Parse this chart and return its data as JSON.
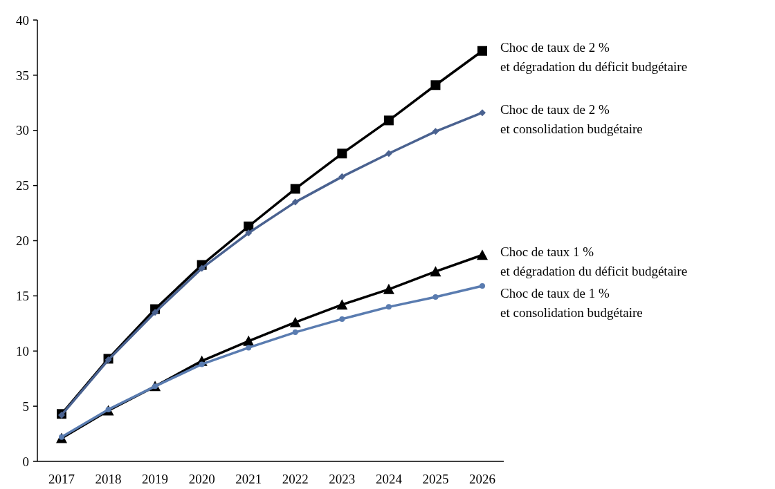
{
  "chart_data": {
    "type": "line",
    "categories": [
      "2017",
      "2018",
      "2019",
      "2020",
      "2021",
      "2022",
      "2023",
      "2024",
      "2025",
      "2026"
    ],
    "ylim": [
      0,
      40
    ],
    "yticks": [
      0,
      5,
      10,
      15,
      20,
      25,
      30,
      35,
      40
    ],
    "grid": false,
    "legend": "right",
    "series": [
      {
        "name": "Choc de taux de 2 %\net dégradation du déficit budgétaire",
        "color": "#000000",
        "marker": "square",
        "values": [
          4.3,
          9.3,
          13.8,
          17.8,
          21.3,
          24.7,
          27.9,
          30.9,
          34.1,
          37.2
        ]
      },
      {
        "name": "Choc de taux de 2 %\net consolidation budgétaire",
        "color": "#4a6290",
        "marker": "diamond",
        "values": [
          4.2,
          9.2,
          13.5,
          17.5,
          20.7,
          23.5,
          25.8,
          27.9,
          29.9,
          31.6
        ]
      },
      {
        "name": "Choc de taux 1 %\net dégradation du déficit budgétaire",
        "color": "#000000",
        "marker": "triangle",
        "values": [
          2.1,
          4.6,
          6.8,
          9.1,
          10.9,
          12.6,
          14.2,
          15.6,
          17.2,
          18.7
        ]
      },
      {
        "name": "Choc de taux de 1 %\net consolidation budgétaire",
        "color": "#5a7cb0",
        "marker": "circle",
        "values": [
          2.2,
          4.7,
          6.8,
          8.8,
          10.3,
          11.7,
          12.9,
          14.0,
          14.9,
          15.9
        ]
      }
    ]
  }
}
